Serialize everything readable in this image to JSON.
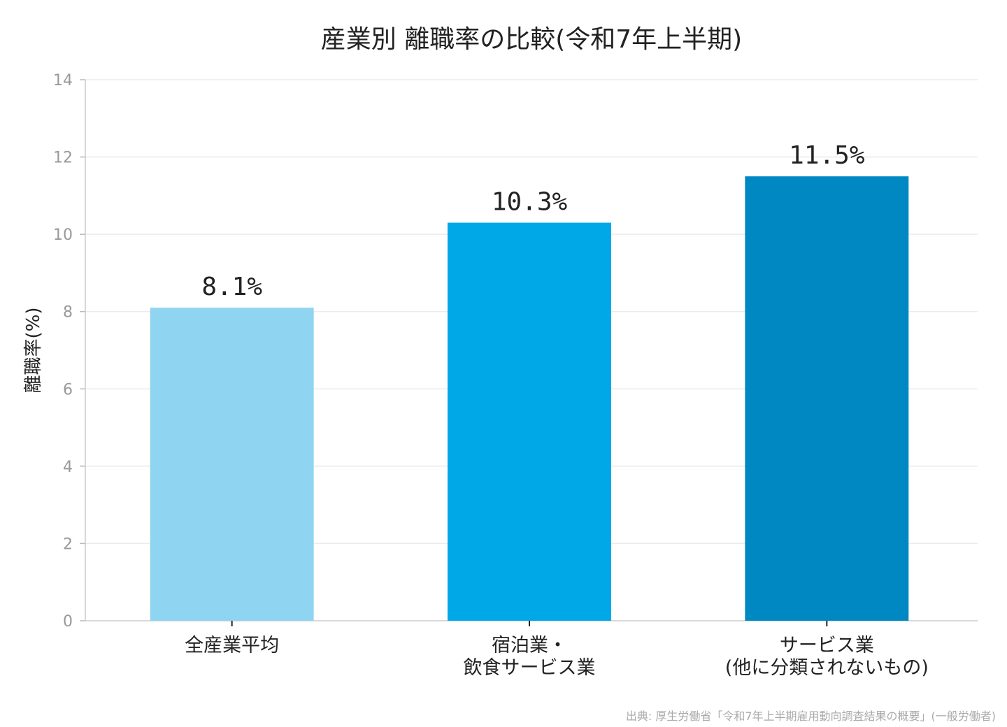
{
  "chart_data": {
    "type": "bar",
    "title": "産業別 離職率の比較(令和7年上半期)",
    "ylabel": "離職率(%)",
    "xlabel": "",
    "ylim": [
      0,
      14
    ],
    "yticks": [
      0,
      2,
      4,
      6,
      8,
      10,
      12,
      14
    ],
    "grid": true,
    "categories": [
      [
        "全産業平均"
      ],
      [
        "宿泊業・",
        "飲食サービス業"
      ],
      [
        "サービス業",
        "(他に分類されないもの)"
      ]
    ],
    "values": [
      8.1,
      10.3,
      11.5
    ],
    "data_labels": [
      "8.1%",
      "10.3%",
      "11.5%"
    ],
    "colors": [
      "#8fd5f2",
      "#00a8e8",
      "#0088c3"
    ],
    "source": "出典: 厚生労働省「令和7年上半期雇用動向調査結果の概要」(一般労働者)"
  }
}
